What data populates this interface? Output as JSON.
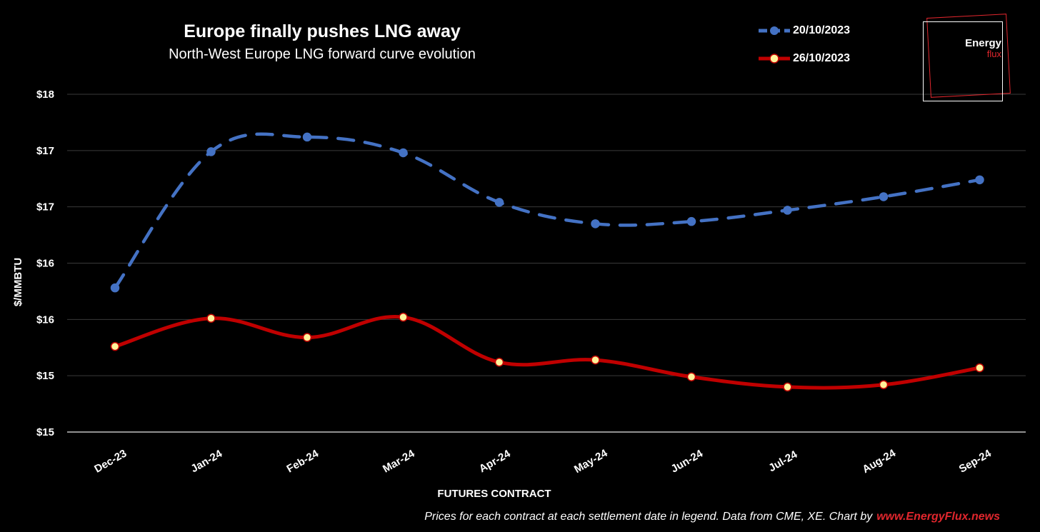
{
  "header": {
    "title": "Europe finally pushes LNG away",
    "subtitle": "North-West Europe LNG forward curve evolution"
  },
  "legend": [
    {
      "label": "20/10/2023",
      "color": "#4472c4",
      "style": "dashed",
      "marker": "circle-filled"
    },
    {
      "label": "26/10/2023",
      "color": "#c00000",
      "style": "solid",
      "marker": "circle-yellow"
    }
  ],
  "logo": {
    "line1": "Energy",
    "line2": "flux"
  },
  "footer": {
    "text": "Prices for each contract at each settlement date in legend. Data from CME, XE. Chart by",
    "link": "www.EnergyFlux.news"
  },
  "chart_data": {
    "type": "line",
    "title": "Europe finally pushes LNG away",
    "subtitle": "North-West Europe LNG forward curve evolution",
    "xlabel": "FUTURES CONTRACT",
    "ylabel": "$/MMBTU",
    "categories": [
      "Dec-23",
      "Jan-24",
      "Feb-24",
      "Mar-24",
      "Apr-24",
      "May-24",
      "Jun-24",
      "Jul-24",
      "Aug-24",
      "Sep-24"
    ],
    "ylim": [
      15.0,
      18.0
    ],
    "yticks": [
      15.0,
      15.5,
      16.0,
      16.5,
      17.0,
      17.5,
      18.0
    ],
    "ytick_labels": [
      "$15",
      "$15",
      "$16",
      "$16",
      "$17",
      "$17",
      "$18"
    ],
    "grid": true,
    "legend_position": "top-right",
    "series": [
      {
        "name": "20/10/2023",
        "color": "#4472c4",
        "style": "dashed",
        "values": [
          16.28,
          17.49,
          17.62,
          17.48,
          17.04,
          16.85,
          16.87,
          16.97,
          17.09,
          17.24
        ]
      },
      {
        "name": "26/10/2023",
        "color": "#c00000",
        "style": "solid",
        "values": [
          15.76,
          16.01,
          15.84,
          16.02,
          15.62,
          15.64,
          15.49,
          15.4,
          15.42,
          15.57
        ]
      }
    ]
  }
}
